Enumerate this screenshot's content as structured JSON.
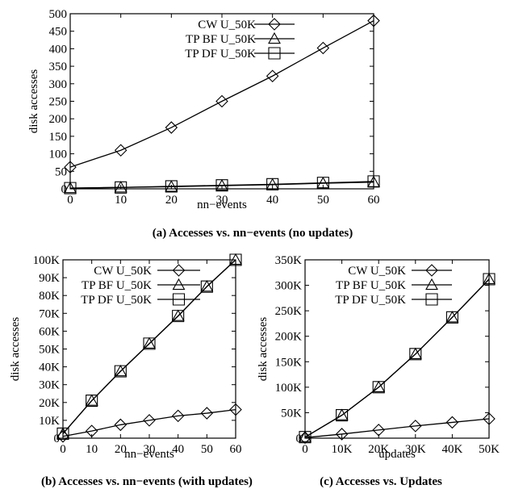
{
  "chart_data": [
    {
      "type": "line",
      "caption": "(a) Accesses vs. nn−events  (no updates)",
      "xlabel": "nn−events",
      "ylabel": "disk accesses",
      "x": [
        0,
        10,
        20,
        30,
        40,
        50,
        60
      ],
      "x_tick_labels": [
        "0",
        "10",
        "20",
        "30",
        "40",
        "50",
        "60"
      ],
      "ylim": [
        0,
        500
      ],
      "y_ticks": [
        0,
        50,
        100,
        150,
        200,
        250,
        300,
        350,
        400,
        450,
        500
      ],
      "y_tick_labels": [
        "0",
        "50",
        "100",
        "150",
        "200",
        "250",
        "300",
        "350",
        "400",
        "450",
        "500"
      ],
      "legend_position": "top-left",
      "series": [
        {
          "name": "CW U_50K",
          "marker": "diamond",
          "values": [
            62,
            110,
            175,
            250,
            322,
            402,
            480
          ]
        },
        {
          "name": "TP BF U_50K",
          "marker": "triangle",
          "values": [
            2,
            4,
            6,
            9,
            12,
            16,
            19
          ]
        },
        {
          "name": "TP DF U_50K",
          "marker": "square",
          "values": [
            2,
            4,
            7,
            10,
            13,
            17,
            21
          ]
        }
      ]
    },
    {
      "type": "line",
      "caption": "(b) Accesses vs. nn−events (with updates)",
      "xlabel": "nn−events",
      "ylabel": "disk accesses",
      "x": [
        0,
        10,
        20,
        30,
        40,
        50,
        60
      ],
      "x_tick_labels": [
        "0",
        "10",
        "20",
        "30",
        "40",
        "50",
        "60"
      ],
      "ylim": [
        0,
        100000
      ],
      "y_ticks": [
        0,
        10000,
        20000,
        30000,
        40000,
        50000,
        60000,
        70000,
        80000,
        90000,
        100000
      ],
      "y_tick_labels": [
        "0",
        "10K",
        "20K",
        "30K",
        "40K",
        "50K",
        "60K",
        "70K",
        "80K",
        "90K",
        "100K"
      ],
      "legend_position": "top-left",
      "series": [
        {
          "name": "CW U_50K",
          "marker": "diamond",
          "values": [
            1000,
            4000,
            7500,
            10000,
            12500,
            14000,
            16000
          ]
        },
        {
          "name": "TP BF U_50K",
          "marker": "triangle",
          "values": [
            2500,
            21000,
            37500,
            53000,
            68500,
            85000,
            100000
          ]
        },
        {
          "name": "TP DF U_50K",
          "marker": "square",
          "values": [
            2500,
            21000,
            37500,
            53000,
            68500,
            85000,
            100000
          ]
        }
      ]
    },
    {
      "type": "line",
      "caption": "(c) Accesses vs. Updates",
      "xlabel": "updates",
      "ylabel": "disk accesses",
      "x": [
        0,
        10000,
        20000,
        30000,
        40000,
        50000
      ],
      "x_tick_labels": [
        "0",
        "10K",
        "20K",
        "30K",
        "40K",
        "50K"
      ],
      "ylim": [
        0,
        350000
      ],
      "y_ticks": [
        0,
        50000,
        100000,
        150000,
        200000,
        250000,
        300000,
        350000
      ],
      "y_tick_labels": [
        "0",
        "50K",
        "100K",
        "150K",
        "200K",
        "250K",
        "300K",
        "350K"
      ],
      "legend_position": "top-left",
      "series": [
        {
          "name": "CW U_50K",
          "marker": "diamond",
          "values": [
            1000,
            8000,
            16000,
            24000,
            31000,
            38000
          ]
        },
        {
          "name": "TP BF U_50K",
          "marker": "triangle",
          "values": [
            2000,
            45000,
            100000,
            165000,
            237000,
            312000
          ]
        },
        {
          "name": "TP DF U_50K",
          "marker": "square",
          "values": [
            2000,
            45000,
            100000,
            165000,
            237000,
            312000
          ]
        }
      ]
    }
  ]
}
